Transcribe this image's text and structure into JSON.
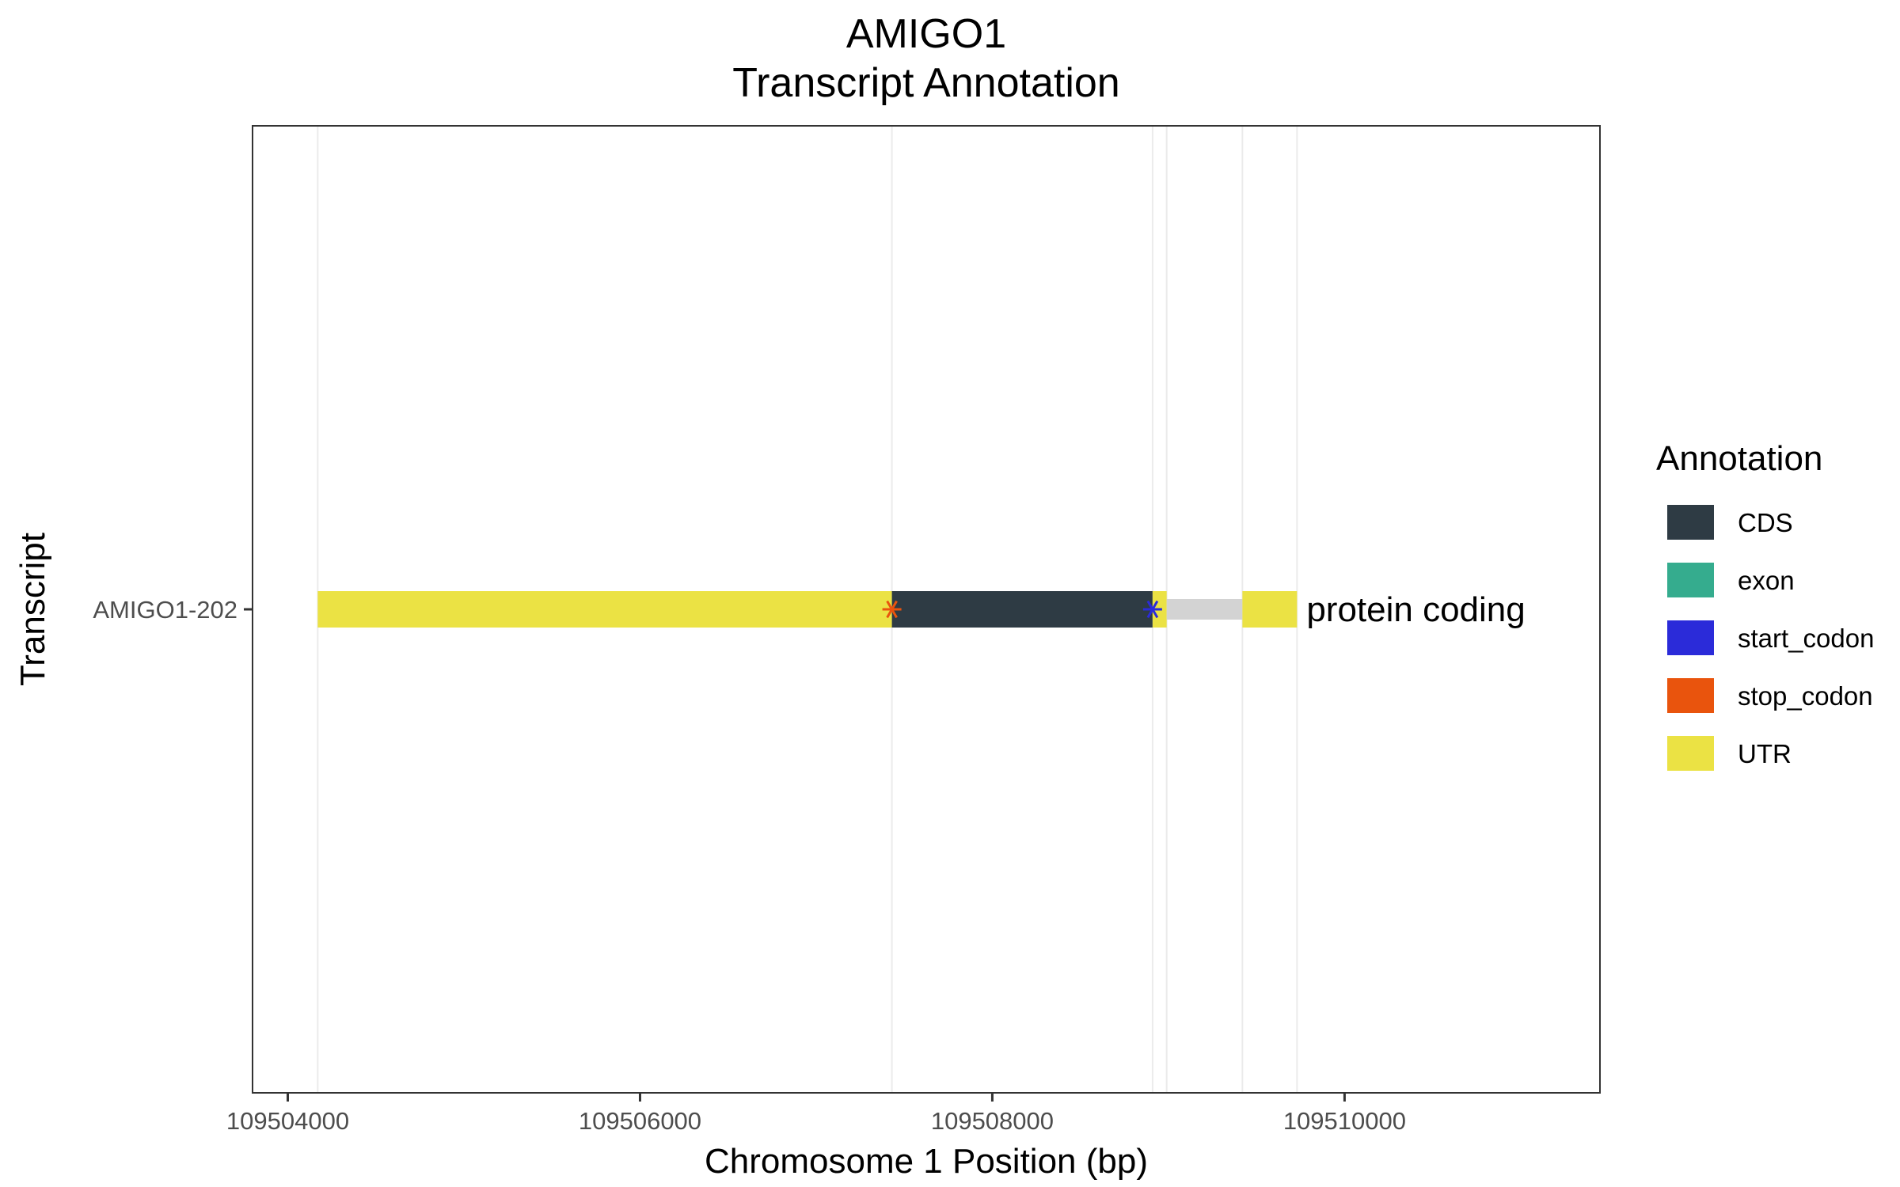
{
  "chart_data": {
    "type": "gene-structure",
    "title_line1": "AMIGO1",
    "title_line2": "Transcript Annotation",
    "xlabel": "Chromosome 1 Position (bp)",
    "ylabel": "Transcript",
    "xlim": [
      109503800,
      109511450
    ],
    "x_ticks": [
      109504000,
      109506000,
      109508000,
      109510000
    ],
    "x_tick_labels": [
      "109504000",
      "109506000",
      "109508000",
      "109510000"
    ],
    "transcripts": [
      {
        "name": "AMIGO1-202",
        "biotype_label": "protein coding",
        "segments": [
          {
            "type": "UTR",
            "start": 109504170,
            "end": 109507430
          },
          {
            "type": "CDS",
            "start": 109507430,
            "end": 109508910
          },
          {
            "type": "UTR",
            "start": 109508910,
            "end": 109508990
          },
          {
            "type": "intron",
            "start": 109508990,
            "end": 109509420
          },
          {
            "type": "UTR",
            "start": 109509420,
            "end": 109509730
          }
        ],
        "codons": [
          {
            "type": "stop_codon",
            "position": 109507430
          },
          {
            "type": "start_codon",
            "position": 109508910
          }
        ]
      }
    ],
    "gridlines_x": [
      109504170,
      109507430,
      109508910,
      109508990,
      109509420,
      109509730
    ],
    "legend": {
      "title": "Annotation",
      "placement": "right",
      "items": [
        {
          "label": "CDS",
          "color": "#2e3b44"
        },
        {
          "label": "exon",
          "color": "#35ac8e"
        },
        {
          "label": "start_codon",
          "color": "#2b2bd9"
        },
        {
          "label": "stop_codon",
          "color": "#e9540d"
        },
        {
          "label": "UTR",
          "color": "#ebe244"
        }
      ]
    },
    "intron_color": "#d3d3d3",
    "grid": true
  }
}
